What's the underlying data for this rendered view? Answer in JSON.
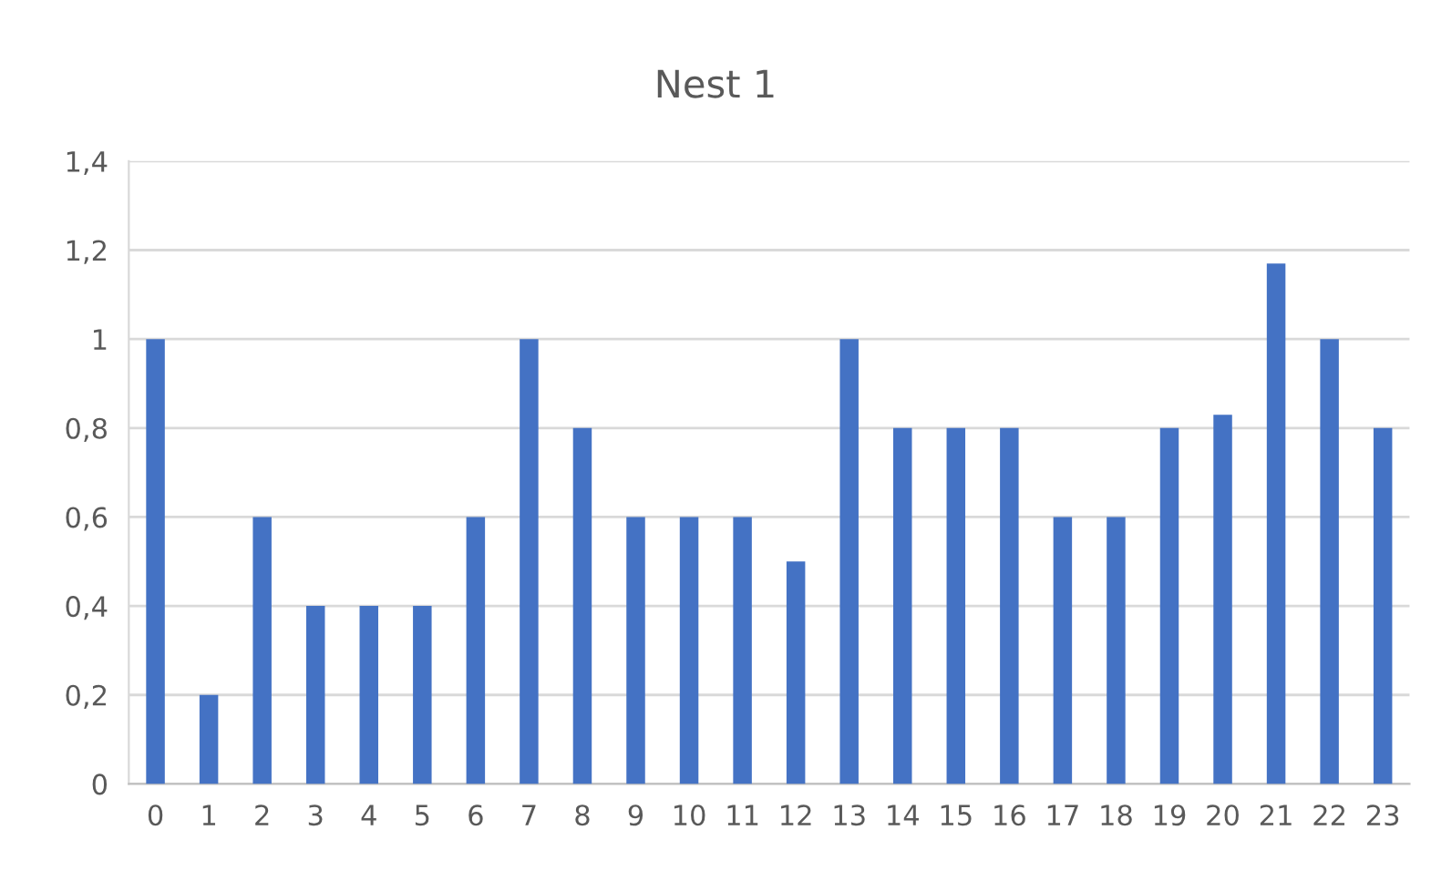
{
  "chart_data": {
    "type": "bar",
    "title": "Nest 1",
    "categories": [
      "0",
      "1",
      "2",
      "3",
      "4",
      "5",
      "6",
      "7",
      "8",
      "9",
      "10",
      "11",
      "12",
      "13",
      "14",
      "15",
      "16",
      "17",
      "18",
      "19",
      "20",
      "21",
      "22",
      "23"
    ],
    "values": [
      1,
      0.2,
      0.6,
      0.4,
      0.4,
      0.4,
      0.6,
      1,
      0.8,
      0.6,
      0.6,
      0.6,
      0.5,
      1,
      0.8,
      0.8,
      0.8,
      0.6,
      0.6,
      0.8,
      0.83,
      1.17,
      1,
      0.8
    ],
    "color": "#4472c4",
    "ylim": [
      0,
      1.4
    ],
    "yticks": [
      0,
      {
        "value": 0.2,
        "label": "0,2"
      },
      {
        "value": 0.4,
        "label": "0,4"
      },
      {
        "value": 0.6,
        "label": "0,6"
      },
      {
        "value": 0.8,
        "label": "0,8"
      },
      1,
      {
        "value": 1.2,
        "label": "1,2"
      },
      {
        "value": 1.4,
        "label": "1,4"
      }
    ],
    "grid": "y"
  }
}
